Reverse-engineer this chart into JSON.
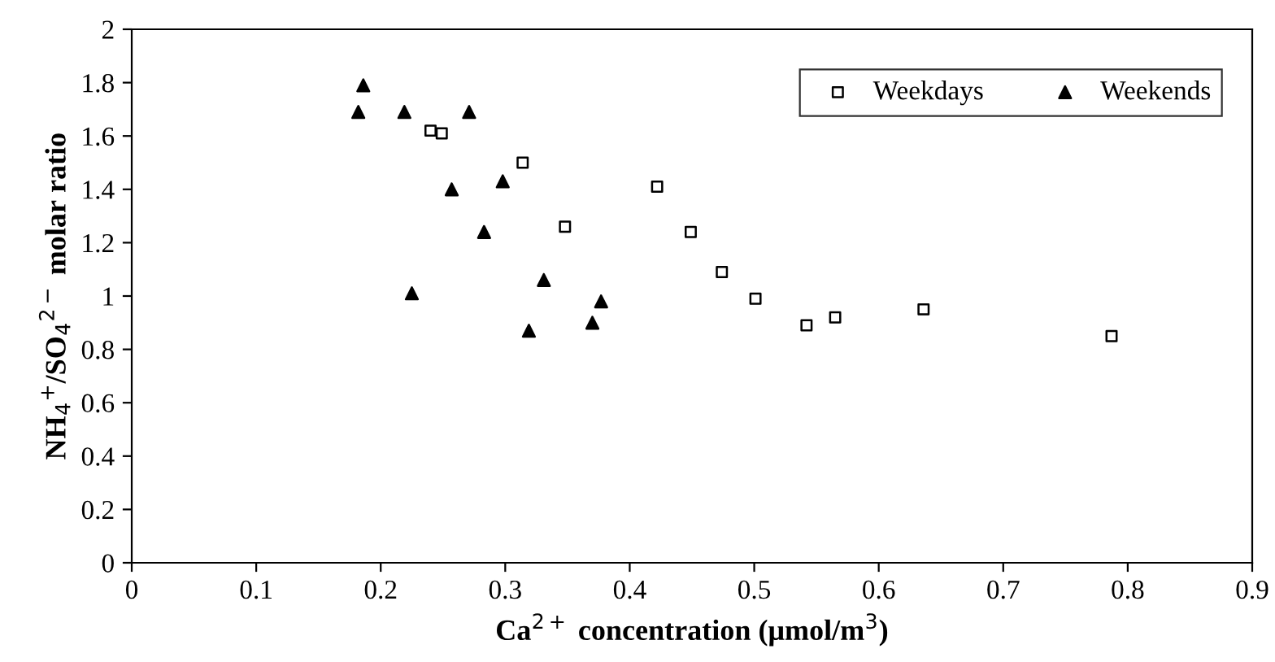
{
  "chart_data": {
    "type": "scatter",
    "xlabel": "Ca$^{2+}$ concentration (μmol/m$^{3}$)",
    "ylabel": "NH$_{4}$$^{+}$/SO$_{4}$$^{2−}$ molar ratio",
    "series": [
      {
        "name": "Weekdays",
        "color": "#000000",
        "marker": "square",
        "x": [
          0.24,
          0.249,
          0.314,
          0.422,
          0.348,
          0.449,
          0.474,
          0.501,
          0.542,
          0.565,
          0.636,
          0.787
        ],
        "values": [
          1.62,
          1.61,
          1.5,
          1.41,
          1.26,
          1.24,
          1.09,
          0.99,
          0.89,
          0.92,
          0.95,
          0.85
        ]
      },
      {
        "name": "Weekends",
        "color": "#000000",
        "marker": "triangle",
        "x": [
          0.186,
          0.182,
          0.219,
          0.271,
          0.257,
          0.298,
          0.283,
          0.225,
          0.331,
          0.377,
          0.37,
          0.319
        ],
        "values": [
          1.79,
          1.69,
          1.69,
          1.69,
          1.4,
          1.43,
          1.24,
          1.01,
          1.06,
          0.98,
          0.9,
          0.87
        ]
      }
    ],
    "xlim": [
      0,
      0.9
    ],
    "xticks": [
      0,
      0.1,
      0.2,
      0.3,
      0.4,
      0.5,
      0.6,
      0.7,
      0.8,
      0.9
    ],
    "ylim": [
      0,
      2
    ],
    "yticks": [
      0,
      0.2,
      0.4,
      0.6,
      0.8,
      1,
      1.2,
      1.4,
      1.6,
      1.8,
      2
    ],
    "grid": false,
    "legend": "top right"
  }
}
